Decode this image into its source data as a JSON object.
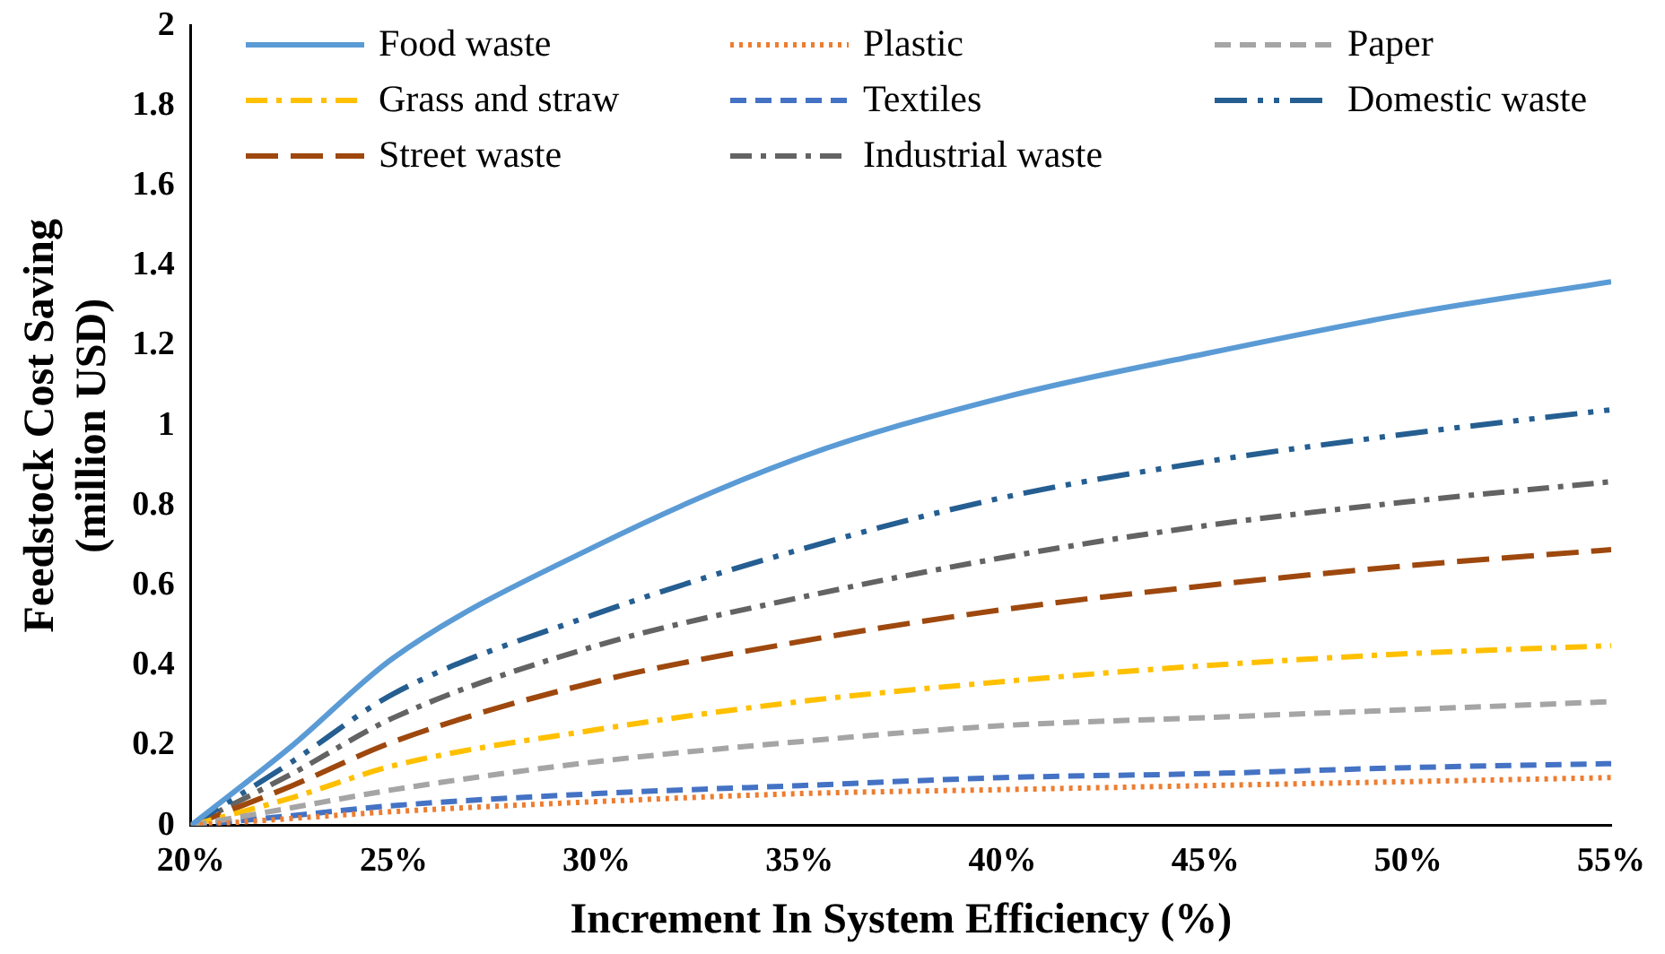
{
  "chart_data": {
    "type": "line",
    "xlabel": "Increment In System Efficiency (%)",
    "ylabel": "Feedstock Cost Saving (million USD)",
    "x": [
      20,
      22.5,
      25,
      30,
      35,
      40,
      45,
      50,
      55
    ],
    "xlim": [
      20,
      55
    ],
    "xticks": [
      {
        "value": 20,
        "label": "20%"
      },
      {
        "value": 25,
        "label": "25%"
      },
      {
        "value": 30,
        "label": "30%"
      },
      {
        "value": 35,
        "label": "35%"
      },
      {
        "value": 40,
        "label": "40%"
      },
      {
        "value": 45,
        "label": "45%"
      },
      {
        "value": 50,
        "label": "50%"
      },
      {
        "value": 55,
        "label": "55%"
      }
    ],
    "ylim": [
      0,
      2
    ],
    "yticks": [
      0,
      0.2,
      0.4,
      0.6,
      0.8,
      1,
      1.2,
      1.4,
      1.6,
      1.8,
      2
    ],
    "grid": false,
    "legend": "top",
    "marker": "none",
    "series": [
      {
        "name": "Food waste",
        "color": "#5b9bd5",
        "line_style": "solid",
        "values": [
          0,
          0.2,
          0.42,
          0.7,
          0.92,
          1.07,
          1.18,
          1.28,
          1.36
        ]
      },
      {
        "name": "Plastic",
        "color": "#ed7d31",
        "line_style": "dotted",
        "values": [
          0,
          0.018,
          0.035,
          0.06,
          0.08,
          0.09,
          0.1,
          0.11,
          0.12
        ]
      },
      {
        "name": "Paper",
        "color": "#a5a5a5",
        "line_style": "dashed",
        "values": [
          0,
          0.045,
          0.09,
          0.16,
          0.21,
          0.25,
          0.27,
          0.29,
          0.31
        ]
      },
      {
        "name": "Grass and straw",
        "color": "#ffc000",
        "line_style": "dashdot",
        "values": [
          0,
          0.07,
          0.15,
          0.24,
          0.31,
          0.36,
          0.4,
          0.43,
          0.45
        ]
      },
      {
        "name": "Textiles",
        "color": "#4472c4",
        "line_style": "dashed",
        "values": [
          0,
          0.025,
          0.05,
          0.08,
          0.1,
          0.12,
          0.13,
          0.145,
          0.155
        ]
      },
      {
        "name": "Domestic waste",
        "color": "#255e91",
        "line_style": "dashdotdot",
        "values": [
          0,
          0.16,
          0.33,
          0.53,
          0.69,
          0.82,
          0.91,
          0.98,
          1.04
        ]
      },
      {
        "name": "Street waste",
        "color": "#9e480e",
        "line_style": "longdash",
        "values": [
          0,
          0.1,
          0.21,
          0.36,
          0.46,
          0.54,
          0.6,
          0.65,
          0.69
        ]
      },
      {
        "name": "Industrial waste",
        "color": "#636363",
        "line_style": "dashdot",
        "values": [
          0,
          0.13,
          0.27,
          0.45,
          0.57,
          0.67,
          0.75,
          0.81,
          0.86
        ]
      }
    ]
  }
}
